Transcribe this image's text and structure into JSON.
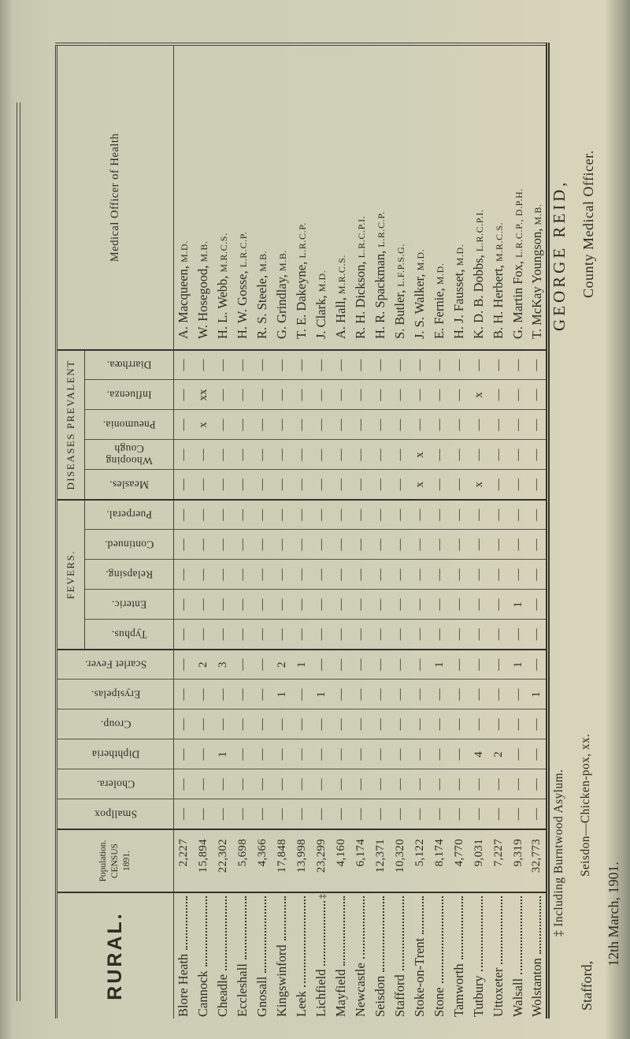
{
  "table": {
    "rural_label": "RURAL.",
    "population_header": [
      "Population.",
      "CENSUS",
      "1891."
    ],
    "officer_header": "Medical Officer of Health",
    "single_columns": [
      "Smallpox",
      "Cholera.",
      "Diphtheria",
      "Croup.",
      "Erysipelas.",
      "Scarlet Fever."
    ],
    "fevers": {
      "label": "FEVERS.",
      "subs": [
        "Typhus.",
        "Enteric.",
        "Relapsing.",
        "Continued.",
        "Puerperal."
      ]
    },
    "diseases_prevalent": {
      "label": "DISEASES PREVALENT",
      "subs": [
        "Measles.",
        "Whooping\nCough",
        "Pneumonia.",
        "Influenza.",
        "Diarrhœa."
      ]
    },
    "districts": [
      {
        "name": "Blore Heath",
        "fnmark": "",
        "population": "2,227",
        "cells": [
          "—",
          "—",
          "—",
          "—",
          "—",
          "—",
          "—",
          "—",
          "—",
          "—",
          "—",
          "—",
          "—",
          "—",
          "—",
          "—"
        ],
        "officer": "A. Macqueen,",
        "quals": "M.D."
      },
      {
        "name": "Cannock",
        "fnmark": "",
        "population": "15,894",
        "cells": [
          "—",
          "—",
          "—",
          "—",
          "—",
          "2",
          "—",
          "—",
          "—",
          "—",
          "—",
          "—",
          "—",
          "x",
          "xx",
          "—"
        ],
        "officer": "W. Hosegood,",
        "quals": "M.B."
      },
      {
        "name": "Cheadle",
        "fnmark": "",
        "population": "22,302",
        "cells": [
          "—",
          "—",
          "1",
          "—",
          "—",
          "3",
          "—",
          "—",
          "—",
          "—",
          "—",
          "—",
          "—",
          "—",
          "—",
          "—"
        ],
        "officer": "H. L. Webb,",
        "quals": "M.R.C.S."
      },
      {
        "name": "Eccleshall",
        "fnmark": "",
        "population": "5,698",
        "cells": [
          "—",
          "—",
          "—",
          "—",
          "—",
          "—",
          "—",
          "—",
          "—",
          "—",
          "—",
          "—",
          "—",
          "—",
          "—",
          "—"
        ],
        "officer": "H. W. Gosse,",
        "quals": "L.R.C.P."
      },
      {
        "name": "Gnosall",
        "fnmark": "",
        "population": "4,366",
        "cells": [
          "—",
          "—",
          "—",
          "—",
          "—",
          "—",
          "—",
          "—",
          "—",
          "—",
          "—",
          "—",
          "—",
          "—",
          "—",
          "—"
        ],
        "officer": "R. S. Steele,",
        "quals": "M.B."
      },
      {
        "name": "Kingswinford",
        "fnmark": "",
        "population": "17,848",
        "cells": [
          "—",
          "—",
          "—",
          "—",
          "1",
          "2",
          "—",
          "—",
          "—",
          "—",
          "—",
          "—",
          "—",
          "—",
          "—",
          "—"
        ],
        "officer": "G. Grindlay,",
        "quals": "M.B."
      },
      {
        "name": "Leek",
        "fnmark": "",
        "population": "13,998",
        "cells": [
          "—",
          "—",
          "—",
          "—",
          "—",
          "1",
          "—",
          "—",
          "—",
          "—",
          "—",
          "—",
          "—",
          "—",
          "—",
          "—"
        ],
        "officer": "T. E. Dakeyne,",
        "quals": "L.R.C.P."
      },
      {
        "name": "Lichfield",
        "fnmark": "‡",
        "population": "23,299",
        "cells": [
          "—",
          "—",
          "—",
          "—",
          "1",
          "—",
          "—",
          "—",
          "—",
          "—",
          "—",
          "—",
          "—",
          "—",
          "—",
          "—"
        ],
        "officer": "J. Clark,",
        "quals": "M.D."
      },
      {
        "name": "Mayfield",
        "fnmark": "",
        "population": "4,160",
        "cells": [
          "—",
          "—",
          "—",
          "—",
          "—",
          "—",
          "—",
          "—",
          "—",
          "—",
          "—",
          "—",
          "—",
          "—",
          "—",
          "—"
        ],
        "officer": "A. Hall,",
        "quals": "M.R.C.S."
      },
      {
        "name": "Newcastle",
        "fnmark": "",
        "population": "6,174",
        "cells": [
          "—",
          "—",
          "—",
          "—",
          "—",
          "—",
          "—",
          "—",
          "—",
          "—",
          "—",
          "—",
          "—",
          "—",
          "—",
          "—"
        ],
        "officer": "R. H. Dickson,",
        "quals": "L.R.C.P.I."
      },
      {
        "name": "Seisdon",
        "fnmark": "",
        "population": "12,371",
        "cells": [
          "—",
          "—",
          "—",
          "—",
          "—",
          "—",
          "—",
          "—",
          "—",
          "—",
          "—",
          "—",
          "—",
          "—",
          "—",
          "—"
        ],
        "officer": "H. R. Spackman,",
        "quals": "L.R.C.P."
      },
      {
        "name": "Stafford",
        "fnmark": "",
        "population": "10,320",
        "cells": [
          "—",
          "—",
          "—",
          "—",
          "—",
          "—",
          "—",
          "—",
          "—",
          "—",
          "—",
          "—",
          "—",
          "—",
          "—",
          "—"
        ],
        "officer": "S. Butler,",
        "quals": "L.F.P.S.G."
      },
      {
        "name": "Stoke-on-Trent",
        "fnmark": "",
        "population": "5,122",
        "cells": [
          "—",
          "—",
          "—",
          "—",
          "—",
          "—",
          "—",
          "—",
          "—",
          "—",
          "—",
          "x",
          "x",
          "—",
          "—",
          "—"
        ],
        "officer": "J. S. Walker,",
        "quals": "M.D."
      },
      {
        "name": "Stone",
        "fnmark": "",
        "population": "8,174",
        "cells": [
          "—",
          "—",
          "—",
          "—",
          "—",
          "1",
          "—",
          "—",
          "—",
          "—",
          "—",
          "—",
          "—",
          "—",
          "—",
          "—"
        ],
        "officer": "E. Fernie,",
        "quals": "M.D."
      },
      {
        "name": "Tamworth",
        "fnmark": "",
        "population": "4,770",
        "cells": [
          "—",
          "—",
          "—",
          "—",
          "—",
          "—",
          "—",
          "—",
          "—",
          "—",
          "—",
          "—",
          "—",
          "—",
          "—",
          "—"
        ],
        "officer": "H. J. Fausset,",
        "quals": "M.D."
      },
      {
        "name": "Tutbury",
        "fnmark": "",
        "population": "9,031",
        "cells": [
          "—",
          "—",
          "4",
          "—",
          "—",
          "—",
          "—",
          "—",
          "—",
          "—",
          "—",
          "x",
          "—",
          "—",
          "x",
          "—"
        ],
        "officer": "K. D. B. Dobbs,",
        "quals": "L.R.C.P.I."
      },
      {
        "name": "Uttoxeter",
        "fnmark": "",
        "population": "7,227",
        "cells": [
          "—",
          "—",
          "2",
          "—",
          "—",
          "—",
          "—",
          "—",
          "—",
          "—",
          "—",
          "—",
          "—",
          "—",
          "—",
          "—"
        ],
        "officer": "B. H. Herbert,",
        "quals": "M.R.C.S."
      },
      {
        "name": "Walsall",
        "fnmark": "",
        "population": "9,319",
        "cells": [
          "—",
          "—",
          "—",
          "—",
          "—",
          "1",
          "—",
          "1",
          "—",
          "—",
          "—",
          "—",
          "—",
          "—",
          "—",
          "—"
        ],
        "officer": "G. Martin Fox,",
        "quals": "L.R.C.P., D.P.H."
      },
      {
        "name": "Wolstanton",
        "fnmark": "",
        "population": "32,773",
        "cells": [
          "—",
          "—",
          "—",
          "—",
          "1",
          "—",
          "—",
          "—",
          "—",
          "—",
          "—",
          "—",
          "—",
          "—",
          "—",
          "—"
        ],
        "officer": "T. McKay Youngson,",
        "quals": "M.B."
      }
    ]
  },
  "signature": {
    "name": "GEORGE REID,",
    "title": "County Medical Officer.",
    "footnote_1": "‡ Including Burntwood Asylum.",
    "footnote_2": "Seisdon—Chicken-pox, xx.",
    "place": "Stafford,",
    "date": "12th March, 1901."
  }
}
